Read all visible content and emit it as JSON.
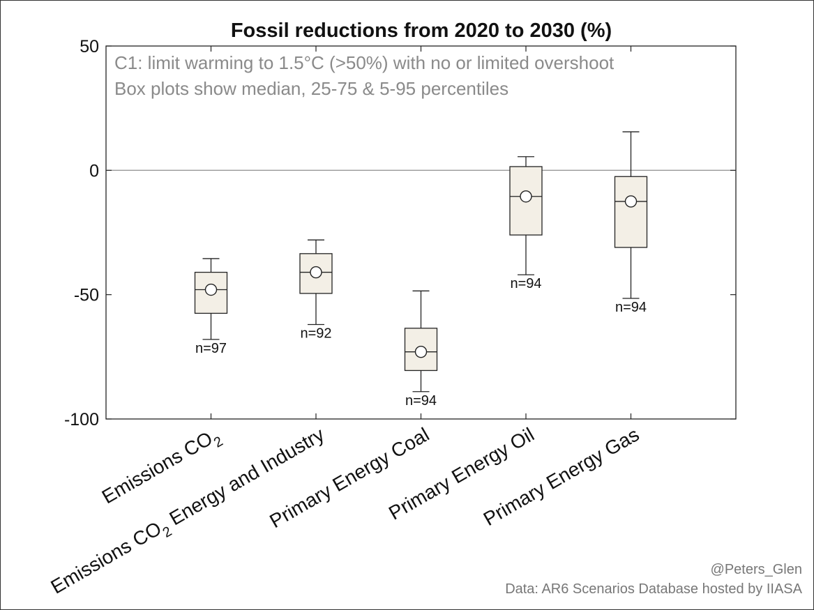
{
  "chart_data": {
    "type": "box",
    "title": "Fossil reductions from 2020 to 2030 (%)",
    "annotations": [
      "C1: limit warming to 1.5°C (>50%) with no or limited overshoot",
      "Box plots show median, 25-75 & 5-95 percentiles"
    ],
    "ylim": [
      -100,
      50
    ],
    "yticks": [
      50,
      0,
      -50,
      -100
    ],
    "yticklabels": [
      "50",
      "0",
      "-50",
      "-100"
    ],
    "zero_line": true,
    "grid": false,
    "categories": [
      {
        "main": "Emissions CO",
        "sub": "2",
        "rest": ""
      },
      {
        "main": "Emissions CO",
        "sub": "2",
        "rest": " Energy and Industry"
      },
      {
        "main": "Primary Energy Coal",
        "sub": "",
        "rest": ""
      },
      {
        "main": "Primary Energy Oil",
        "sub": "",
        "rest": ""
      },
      {
        "main": "Primary Energy Gas",
        "sub": "",
        "rest": ""
      }
    ],
    "series": [
      {
        "p5": -68,
        "p25": -57.5,
        "median": -48,
        "p75": -41,
        "p95": -35.5,
        "mean": -48,
        "n_label": "n=97"
      },
      {
        "p5": -62,
        "p25": -49.5,
        "median": -41,
        "p75": -33.5,
        "p95": -28,
        "mean": -41,
        "n_label": "n=92"
      },
      {
        "p5": -89,
        "p25": -80.5,
        "median": -73,
        "p75": -63.5,
        "p95": -48.5,
        "mean": -73,
        "n_label": "n=94"
      },
      {
        "p5": -42,
        "p25": -26,
        "median": -10.5,
        "p75": 1.5,
        "p95": 5.5,
        "mean": -10.5,
        "n_label": "n=94"
      },
      {
        "p5": -51.5,
        "p25": -31,
        "median": -12.5,
        "p75": -2.5,
        "p95": 15.5,
        "mean": -12.5,
        "n_label": "n=94"
      }
    ],
    "colors": {
      "box_fill": "#f3efe6",
      "stroke": "#222222",
      "zero_line": "#999999",
      "note_text": "#8a8a8a"
    }
  },
  "credits": {
    "author": "@Peters_Glen",
    "source": "Data: AR6 Scenarios Database hosted by IIASA"
  }
}
